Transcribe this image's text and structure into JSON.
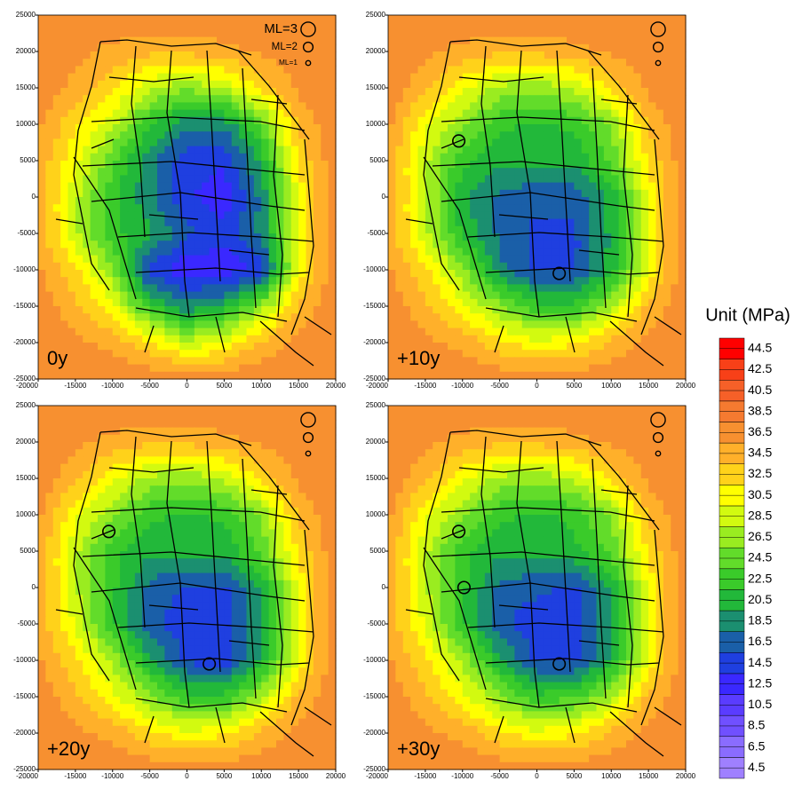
{
  "chart_data": [
    {
      "type": "contour",
      "label": "0y",
      "xlim": [
        -20000,
        20000
      ],
      "ylim": [
        -25000,
        25000
      ],
      "xticks": [
        -20000,
        -15000,
        -10000,
        -5000,
        0,
        5000,
        10000,
        15000,
        20000
      ],
      "yticks": [
        -25000,
        -20000,
        -15000,
        -10000,
        -5000,
        0,
        5000,
        10000,
        15000,
        20000,
        25000
      ],
      "grid_x": [
        -20000,
        -15000,
        -10000,
        -5000,
        0,
        5000,
        10000,
        15000,
        20000
      ],
      "grid_y": [
        25000,
        20000,
        15000,
        10000,
        5000,
        0,
        -5000,
        -10000,
        -15000,
        -20000,
        -25000
      ],
      "z": [
        [
          37,
          37,
          37,
          37,
          37,
          37,
          37,
          37,
          37
        ],
        [
          37,
          36,
          35,
          34,
          34,
          35,
          36,
          37,
          37
        ],
        [
          37,
          35,
          32,
          28,
          26,
          28,
          32,
          36,
          37
        ],
        [
          36,
          32,
          28,
          22,
          18,
          18,
          24,
          34,
          37
        ],
        [
          35,
          30,
          24,
          18,
          14,
          14,
          20,
          32,
          37
        ],
        [
          35,
          28,
          22,
          18,
          14,
          12,
          18,
          30,
          37
        ],
        [
          35,
          28,
          22,
          20,
          16,
          14,
          18,
          30,
          37
        ],
        [
          36,
          32,
          26,
          14,
          12,
          12,
          14,
          30,
          37
        ],
        [
          37,
          34,
          30,
          22,
          18,
          20,
          26,
          34,
          37
        ],
        [
          37,
          36,
          35,
          32,
          28,
          30,
          34,
          36,
          37
        ],
        [
          37,
          37,
          37,
          37,
          37,
          37,
          37,
          37,
          37
        ]
      ],
      "legend": {
        "labels": [
          "ML=3",
          "ML=2",
          "ML=1"
        ],
        "ml": [
          3,
          2,
          1
        ]
      }
    },
    {
      "type": "contour",
      "label": "+10y",
      "xlim": [
        -20000,
        20000
      ],
      "ylim": [
        -25000,
        25000
      ],
      "xticks": [
        -20000,
        -15000,
        -10000,
        -5000,
        0,
        5000,
        10000,
        15000,
        20000
      ],
      "yticks": [
        -25000,
        -20000,
        -15000,
        -10000,
        -5000,
        0,
        5000,
        10000,
        15000,
        20000,
        25000
      ],
      "grid_x": [
        -20000,
        -15000,
        -10000,
        -5000,
        0,
        5000,
        10000,
        15000,
        20000
      ],
      "grid_y": [
        25000,
        20000,
        15000,
        10000,
        5000,
        0,
        -5000,
        -10000,
        -15000,
        -20000,
        -25000
      ],
      "z": [
        [
          37,
          37,
          37,
          37,
          37,
          37,
          37,
          37,
          37
        ],
        [
          37,
          36,
          35,
          34,
          34,
          35,
          36,
          37,
          37
        ],
        [
          37,
          34,
          30,
          27,
          26,
          28,
          32,
          36,
          37
        ],
        [
          36,
          30,
          26,
          22,
          21,
          22,
          26,
          34,
          37
        ],
        [
          35,
          28,
          22,
          20,
          20,
          20,
          24,
          32,
          37
        ],
        [
          35,
          28,
          20,
          17,
          16,
          16,
          20,
          30,
          37
        ],
        [
          35,
          28,
          21,
          17,
          15,
          15,
          20,
          30,
          37
        ],
        [
          36,
          32,
          26,
          18,
          15,
          15,
          20,
          30,
          37
        ],
        [
          37,
          34,
          30,
          26,
          22,
          22,
          27,
          34,
          37
        ],
        [
          37,
          36,
          35,
          32,
          30,
          31,
          34,
          36,
          37
        ],
        [
          37,
          37,
          37,
          37,
          37,
          37,
          37,
          37,
          37
        ]
      ],
      "events": {
        "x": [
          -10500,
          3000
        ],
        "y": [
          7700,
          -10500
        ],
        "ml": [
          2.5,
          2.5
        ]
      },
      "legend": {
        "ml": [
          3,
          2,
          1
        ]
      }
    },
    {
      "type": "contour",
      "label": "+20y",
      "xlim": [
        -20000,
        20000
      ],
      "ylim": [
        -25000,
        25000
      ],
      "xticks": [
        -20000,
        -15000,
        -10000,
        -5000,
        0,
        5000,
        10000,
        15000,
        20000
      ],
      "yticks": [
        -25000,
        -20000,
        -15000,
        -10000,
        -5000,
        0,
        5000,
        10000,
        15000,
        20000,
        25000
      ],
      "grid_x": [
        -20000,
        -15000,
        -10000,
        -5000,
        0,
        5000,
        10000,
        15000,
        20000
      ],
      "grid_y": [
        25000,
        20000,
        15000,
        10000,
        5000,
        0,
        -5000,
        -10000,
        -15000,
        -20000,
        -25000
      ],
      "z": [
        [
          37,
          37,
          37,
          37,
          37,
          37,
          37,
          37,
          37
        ],
        [
          37,
          36,
          35,
          34,
          34,
          35,
          36,
          37,
          37
        ],
        [
          37,
          34,
          30,
          27,
          26,
          28,
          32,
          36,
          37
        ],
        [
          36,
          30,
          26,
          22,
          21,
          22,
          26,
          34,
          37
        ],
        [
          35,
          28,
          22,
          20,
          20,
          20,
          24,
          32,
          37
        ],
        [
          35,
          28,
          22,
          17,
          15,
          15,
          20,
          30,
          37
        ],
        [
          35,
          29,
          22,
          16,
          14,
          14,
          20,
          30,
          37
        ],
        [
          36,
          32,
          27,
          20,
          15,
          14,
          20,
          30,
          37
        ],
        [
          37,
          34,
          30,
          26,
          22,
          22,
          27,
          34,
          37
        ],
        [
          37,
          36,
          35,
          32,
          30,
          31,
          34,
          36,
          37
        ],
        [
          37,
          37,
          37,
          37,
          37,
          37,
          37,
          37,
          37
        ]
      ],
      "events": {
        "x": [
          -10500,
          3000
        ],
        "y": [
          7700,
          -10500
        ],
        "ml": [
          2.5,
          2.5
        ]
      },
      "legend": {
        "ml": [
          3,
          2,
          1
        ]
      }
    },
    {
      "type": "contour",
      "label": "+30y",
      "xlim": [
        -20000,
        20000
      ],
      "ylim": [
        -25000,
        25000
      ],
      "xticks": [
        -20000,
        -15000,
        -10000,
        -5000,
        0,
        5000,
        10000,
        15000,
        20000
      ],
      "yticks": [
        -25000,
        -20000,
        -15000,
        -10000,
        -5000,
        0,
        5000,
        10000,
        15000,
        20000,
        25000
      ],
      "grid_x": [
        -20000,
        -15000,
        -10000,
        -5000,
        0,
        5000,
        10000,
        15000,
        20000
      ],
      "grid_y": [
        25000,
        20000,
        15000,
        10000,
        5000,
        0,
        -5000,
        -10000,
        -15000,
        -20000,
        -25000
      ],
      "z": [
        [
          37,
          37,
          37,
          37,
          37,
          37,
          37,
          37,
          37
        ],
        [
          37,
          36,
          35,
          34,
          34,
          35,
          36,
          37,
          37
        ],
        [
          37,
          34,
          30,
          27,
          26,
          28,
          32,
          36,
          37
        ],
        [
          36,
          30,
          26,
          22,
          21,
          22,
          26,
          34,
          37
        ],
        [
          35,
          28,
          22,
          20,
          20,
          21,
          24,
          32,
          37
        ],
        [
          35,
          28,
          22,
          17,
          16,
          15,
          20,
          30,
          37
        ],
        [
          35,
          29,
          22,
          16,
          14,
          14,
          20,
          30,
          37
        ],
        [
          36,
          32,
          27,
          20,
          15,
          15,
          20,
          30,
          37
        ],
        [
          37,
          34,
          30,
          26,
          22,
          23,
          27,
          34,
          37
        ],
        [
          37,
          36,
          35,
          32,
          30,
          31,
          34,
          36,
          37
        ],
        [
          37,
          37,
          37,
          37,
          37,
          37,
          37,
          37,
          37
        ]
      ],
      "events": {
        "x": [
          -10500,
          -9800,
          3000
        ],
        "y": [
          7700,
          0,
          -10500
        ],
        "ml": [
          2.5,
          2.5,
          2.5
        ]
      },
      "legend": {
        "ml": [
          3,
          2,
          1
        ]
      }
    }
  ],
  "colorbar": {
    "title": "Unit (MPa)",
    "levels": [
      4.5,
      6.5,
      8.5,
      10.5,
      12.5,
      14.5,
      16.5,
      18.5,
      20.5,
      22.5,
      24.5,
      26.5,
      28.5,
      30.5,
      32.5,
      34.5,
      36.5,
      38.5,
      40.5,
      42.5,
      44.5
    ],
    "colors": [
      "#9f80ff",
      "#8a6cff",
      "#7050ff",
      "#5a3cff",
      "#3a28ff",
      "#1f3fe0",
      "#1a5fa8",
      "#1b8f70",
      "#22b83a",
      "#3acb2a",
      "#62dc2a",
      "#9aec20",
      "#d2fa10",
      "#ffff00",
      "#ffd21a",
      "#ffb02a",
      "#f79030",
      "#f57a30",
      "#f66028",
      "#f84018",
      "#ff0000"
    ]
  }
}
